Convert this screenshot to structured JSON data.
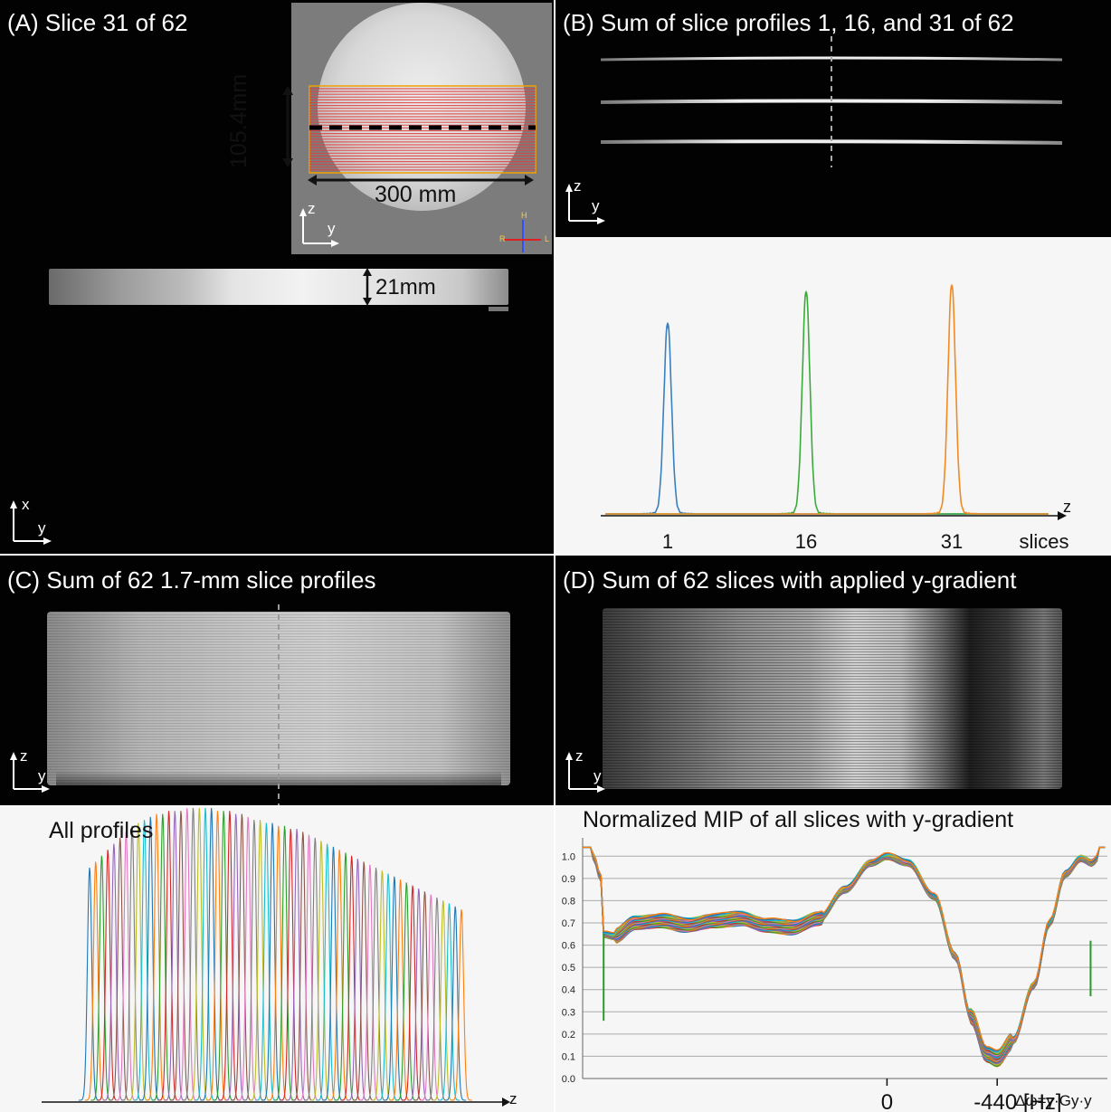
{
  "panels": {
    "a": {
      "title": "(A) Slice 31 of 62",
      "inset_height": "105.4mm",
      "inset_width": "300 mm",
      "slab_thickness": "21mm",
      "axes_main": {
        "v": "x",
        "h": "y"
      },
      "axes_inset": {
        "v": "z",
        "h": "y"
      },
      "orientation": {
        "top": "H",
        "left": "R",
        "right": "L"
      }
    },
    "b": {
      "title": "(B) Sum of slice profiles 1, 16, and 31 of 62",
      "axes": {
        "v": "z",
        "h": "y"
      }
    },
    "c": {
      "title": "(C) Sum of 62 1.7-mm slice profiles",
      "axes": {
        "v": "z",
        "h": "y"
      }
    },
    "d": {
      "title": "(D) Sum of 62 slices with applied y-gradient",
      "axes": {
        "v": "z",
        "h": "y"
      }
    },
    "e": {
      "title": "All profiles",
      "xlabel": "z"
    },
    "f": {
      "title": "Normalized MIP of all slices with y-gradient",
      "x_ticks": [
        "0",
        "-440 [Hz]"
      ],
      "x_formula": "Δω=γ·Gy·y"
    }
  },
  "chart_data": [
    {
      "type": "line",
      "panel": "B-profiles",
      "xlabel": "z",
      "categories": [
        "1",
        "16",
        "31"
      ],
      "category_axis_label": "slices",
      "series": [
        {
          "color": "#3a7fbf",
          "peak_at": "1",
          "peak": 0.83
        },
        {
          "color": "#3aab3a",
          "peak_at": "16",
          "peak": 0.97
        },
        {
          "color": "#f08a24",
          "peak_at": "31",
          "peak": 1.0
        }
      ]
    },
    {
      "type": "line",
      "panel": "E-all-profiles",
      "title": "All profiles",
      "xlabel": "z",
      "profiles": 62,
      "envelope": [
        0.78,
        0.8,
        0.82,
        0.84,
        0.86,
        0.88,
        0.9,
        0.92,
        0.93,
        0.94,
        0.95,
        0.96,
        0.96,
        0.97,
        0.97,
        0.97,
        0.98,
        0.98,
        0.98,
        0.98,
        0.98,
        0.97,
        0.97,
        0.97,
        0.96,
        0.96,
        0.95,
        0.94,
        0.94,
        0.93,
        0.93,
        0.92,
        0.92,
        0.91,
        0.91,
        0.9,
        0.89,
        0.88,
        0.87,
        0.86,
        0.85,
        0.84,
        0.83,
        0.82,
        0.81,
        0.8,
        0.79,
        0.78,
        0.77,
        0.76,
        0.75,
        0.74,
        0.73,
        0.72,
        0.71,
        0.7,
        0.69,
        0.68,
        0.67,
        0.66,
        0.65,
        0.64
      ],
      "colors": [
        "#1f77b4",
        "#ff7f0e",
        "#2ca02c",
        "#d62728",
        "#9467bd",
        "#8c564b",
        "#e377c2",
        "#7f7f7f",
        "#bcbd22",
        "#17becf"
      ]
    },
    {
      "type": "line",
      "panel": "F-mip",
      "title": "Normalized MIP of all slices with y-gradient",
      "ylim": [
        0,
        1.05
      ],
      "y_ticks": [
        "0.0",
        "0.1",
        "0.2",
        "0.3",
        "0.4",
        "0.5",
        "0.6",
        "0.7",
        "0.8",
        "0.9",
        "1.0"
      ],
      "x_ticks": [
        "0",
        "-440 [Hz]"
      ],
      "grid": true,
      "curve": [
        [
          0.02,
          1.0
        ],
        [
          0.035,
          0.9
        ],
        [
          0.04,
          0.65
        ],
        [
          0.06,
          0.64
        ],
        [
          0.1,
          0.7
        ],
        [
          0.15,
          0.71
        ],
        [
          0.2,
          0.69
        ],
        [
          0.25,
          0.71
        ],
        [
          0.3,
          0.72
        ],
        [
          0.35,
          0.69
        ],
        [
          0.4,
          0.68
        ],
        [
          0.45,
          0.72
        ],
        [
          0.5,
          0.85
        ],
        [
          0.55,
          0.97
        ],
        [
          0.58,
          1.0
        ],
        [
          0.62,
          0.97
        ],
        [
          0.67,
          0.82
        ],
        [
          0.71,
          0.55
        ],
        [
          0.74,
          0.28
        ],
        [
          0.77,
          0.11
        ],
        [
          0.79,
          0.09
        ],
        [
          0.82,
          0.17
        ],
        [
          0.86,
          0.42
        ],
        [
          0.89,
          0.7
        ],
        [
          0.92,
          0.92
        ],
        [
          0.95,
          0.99
        ],
        [
          0.97,
          0.97
        ],
        [
          0.985,
          1.0
        ]
      ],
      "series_count": 62,
      "spread": 0.04,
      "colors": [
        "#1f77b4",
        "#ff7f0e",
        "#2ca02c",
        "#d62728",
        "#9467bd",
        "#8c564b",
        "#e377c2",
        "#7f7f7f",
        "#bcbd22",
        "#17becf"
      ]
    }
  ]
}
